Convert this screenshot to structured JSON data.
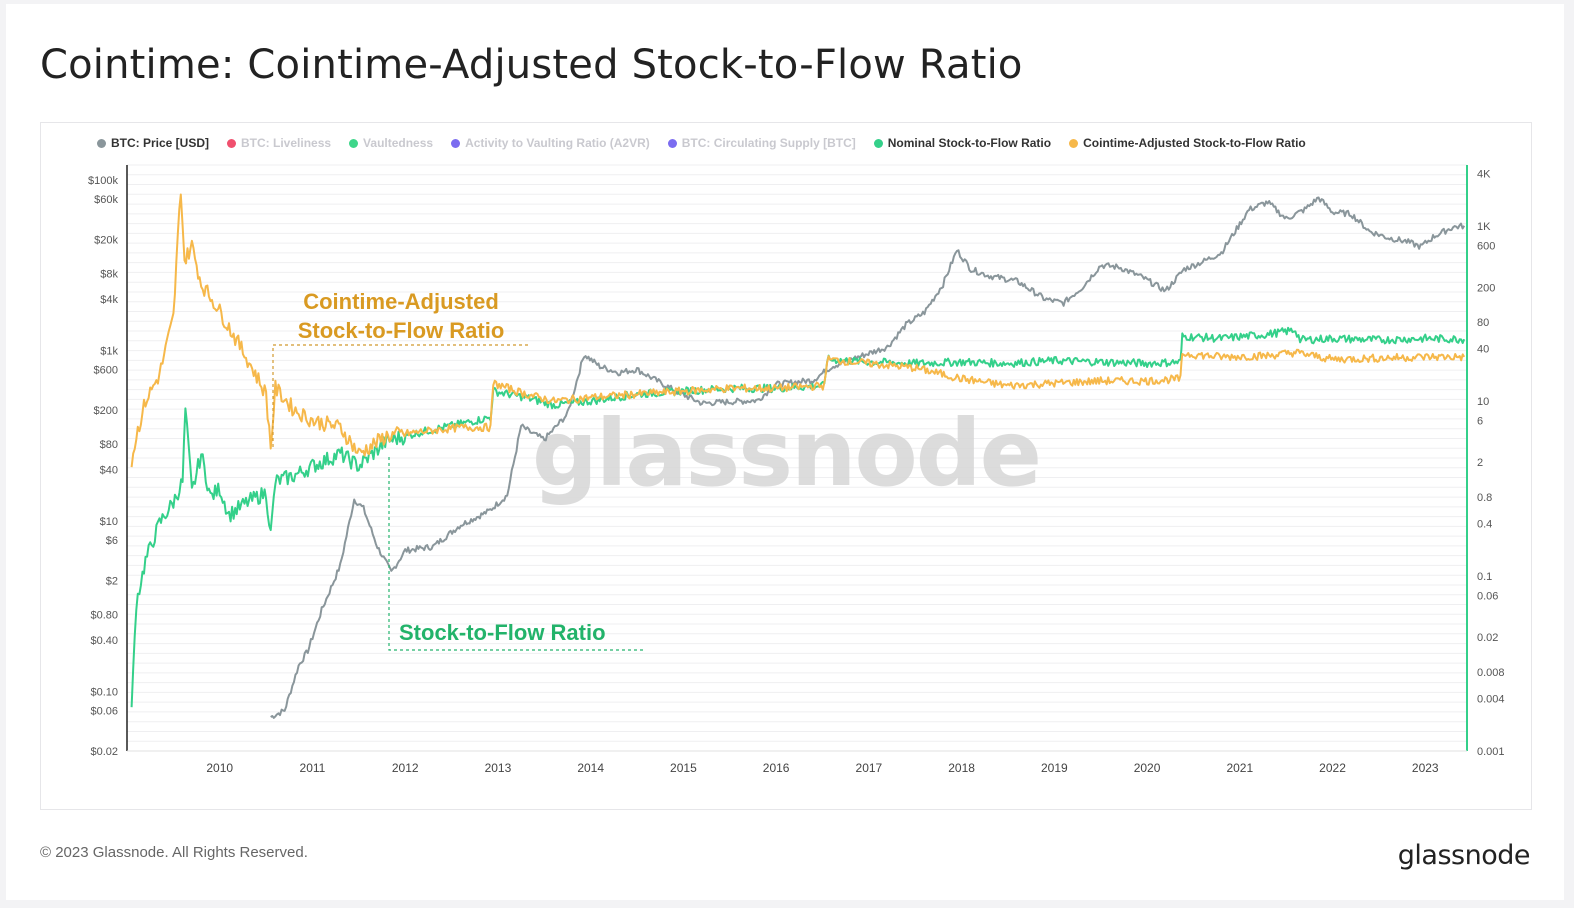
{
  "title": "Cointime: Cointime-Adjusted Stock-to-Flow Ratio",
  "legend": [
    {
      "label": "BTC: Price [USD]",
      "color": "#8a969b",
      "active": true
    },
    {
      "label": "BTC: Liveliness",
      "color": "#f0506e",
      "active": false
    },
    {
      "label": "Vaultedness",
      "color": "#3ed68a",
      "active": false
    },
    {
      "label": "Activity to Vaulting Ratio (A2VR)",
      "color": "#7b6cf0",
      "active": false
    },
    {
      "label": "BTC: Circulating Supply [BTC]",
      "color": "#7b6cf0",
      "active": false
    },
    {
      "label": "Nominal Stock-to-Flow Ratio",
      "color": "#34d08a",
      "active": true
    },
    {
      "label": "Cointime-Adjusted Stock-to-Flow Ratio",
      "color": "#f6b84a",
      "active": true
    }
  ],
  "annotations": {
    "cointime_label_line1": "Cointime-Adjusted",
    "cointime_label_line2": "Stock-to-Flow Ratio",
    "stf_label": "Stock-to-Flow Ratio"
  },
  "watermark": "glassnode",
  "footer": {
    "copyright": "© 2023 Glassnode. All Rights Reserved.",
    "brand": "glassnode"
  },
  "chart_data": {
    "type": "line",
    "x_axis": {
      "ticks": [
        "2010",
        "2011",
        "2012",
        "2013",
        "2014",
        "2015",
        "2016",
        "2017",
        "2018",
        "2019",
        "2020",
        "2021",
        "2022",
        "2023"
      ],
      "range": [
        2009.0,
        2023.45
      ]
    },
    "y_left": {
      "scale": "log",
      "range": [
        0.02,
        150000
      ],
      "tick_labels": [
        "$100k",
        "$60k",
        "$20k",
        "$8k",
        "$4k",
        "$1k",
        "$600",
        "$200",
        "$80",
        "$40",
        "$10",
        "$6",
        "$2",
        "$0.80",
        "$0.40",
        "$0.10",
        "$0.06",
        "$0.02"
      ],
      "tick_values": [
        100000,
        60000,
        20000,
        8000,
        4000,
        1000,
        600,
        200,
        80,
        40,
        10,
        6,
        2,
        0.8,
        0.4,
        0.1,
        0.06,
        0.02
      ]
    },
    "y_right": {
      "scale": "log",
      "range": [
        0.001,
        5000
      ],
      "tick_labels": [
        "4K",
        "1K",
        "600",
        "200",
        "80",
        "40",
        "10",
        "6",
        "2",
        "0.8",
        "0.4",
        "0.1",
        "0.06",
        "0.02",
        "0.008",
        "0.004",
        "0.001"
      ],
      "tick_values": [
        4000,
        1000,
        600,
        200,
        80,
        40,
        10,
        6,
        2,
        0.8,
        0.4,
        0.1,
        0.06,
        0.02,
        0.008,
        0.004,
        0.001
      ]
    },
    "grid": true,
    "legend_position": "top",
    "series": [
      {
        "name": "BTC: Price [USD]",
        "axis": "left",
        "color": "#8a969b",
        "points": [
          [
            2010.55,
            0.05
          ],
          [
            2010.7,
            0.06
          ],
          [
            2010.85,
            0.2
          ],
          [
            2010.95,
            0.3
          ],
          [
            2011.1,
            0.9
          ],
          [
            2011.3,
            3
          ],
          [
            2011.45,
            18
          ],
          [
            2011.55,
            14
          ],
          [
            2011.7,
            5
          ],
          [
            2011.85,
            2.5
          ],
          [
            2012.0,
            4.5
          ],
          [
            2012.3,
            5
          ],
          [
            2012.6,
            9
          ],
          [
            2012.9,
            13
          ],
          [
            2013.1,
            20
          ],
          [
            2013.25,
            130
          ],
          [
            2013.35,
            110
          ],
          [
            2013.5,
            90
          ],
          [
            2013.75,
            180
          ],
          [
            2013.93,
            900
          ],
          [
            2014.1,
            650
          ],
          [
            2014.3,
            550
          ],
          [
            2014.5,
            600
          ],
          [
            2014.7,
            450
          ],
          [
            2014.95,
            320
          ],
          [
            2015.2,
            240
          ],
          [
            2015.5,
            250
          ],
          [
            2015.8,
            260
          ],
          [
            2016.0,
            400
          ],
          [
            2016.4,
            450
          ],
          [
            2016.6,
            650
          ],
          [
            2016.9,
            850
          ],
          [
            2017.2,
            1100
          ],
          [
            2017.4,
            2000
          ],
          [
            2017.6,
            2800
          ],
          [
            2017.8,
            6000
          ],
          [
            2017.95,
            15000
          ],
          [
            2018.1,
            9000
          ],
          [
            2018.3,
            7500
          ],
          [
            2018.6,
            6500
          ],
          [
            2018.9,
            4000
          ],
          [
            2019.1,
            3600
          ],
          [
            2019.3,
            5500
          ],
          [
            2019.5,
            10000
          ],
          [
            2019.7,
            9500
          ],
          [
            2019.95,
            7200
          ],
          [
            2020.2,
            5000
          ],
          [
            2020.4,
            9000
          ],
          [
            2020.6,
            11000
          ],
          [
            2020.8,
            14000
          ],
          [
            2020.95,
            25000
          ],
          [
            2021.1,
            45000
          ],
          [
            2021.3,
            55000
          ],
          [
            2021.5,
            35000
          ],
          [
            2021.7,
            45000
          ],
          [
            2021.85,
            62000
          ],
          [
            2022.0,
            42000
          ],
          [
            2022.2,
            40000
          ],
          [
            2022.4,
            25000
          ],
          [
            2022.6,
            21000
          ],
          [
            2022.8,
            19000
          ],
          [
            2022.95,
            16500
          ],
          [
            2023.1,
            22000
          ],
          [
            2023.3,
            28000
          ],
          [
            2023.42,
            29000
          ]
        ]
      },
      {
        "name": "Nominal Stock-to-Flow Ratio",
        "axis": "right",
        "color": "#34d08a",
        "points": [
          [
            2009.05,
            0.003
          ],
          [
            2009.1,
            0.05
          ],
          [
            2009.2,
            0.15
          ],
          [
            2009.35,
            0.4
          ],
          [
            2009.5,
            0.7
          ],
          [
            2009.6,
            1.2
          ],
          [
            2009.63,
            8
          ],
          [
            2009.7,
            0.9
          ],
          [
            2009.8,
            2.5
          ],
          [
            2009.9,
            0.8
          ],
          [
            2010.0,
            1.0
          ],
          [
            2010.1,
            0.5
          ],
          [
            2010.3,
            0.7
          ],
          [
            2010.5,
            0.9
          ],
          [
            2010.55,
            0.3
          ],
          [
            2010.6,
            1.2
          ],
          [
            2010.8,
            1.4
          ],
          [
            2011.0,
            1.8
          ],
          [
            2011.3,
            2.5
          ],
          [
            2011.5,
            1.8
          ],
          [
            2011.8,
            3.5
          ],
          [
            2012.2,
            4.5
          ],
          [
            2012.6,
            5.5
          ],
          [
            2012.92,
            6.5
          ],
          [
            2012.95,
            13
          ],
          [
            2013.3,
            11
          ],
          [
            2013.6,
            9
          ],
          [
            2014.0,
            10
          ],
          [
            2014.5,
            12
          ],
          [
            2015.0,
            13
          ],
          [
            2015.5,
            14
          ],
          [
            2016.0,
            14
          ],
          [
            2016.52,
            15
          ],
          [
            2016.55,
            30
          ],
          [
            2017.0,
            28
          ],
          [
            2017.5,
            27
          ],
          [
            2018.0,
            28
          ],
          [
            2018.5,
            27
          ],
          [
            2019.0,
            29
          ],
          [
            2019.5,
            28
          ],
          [
            2020.0,
            27
          ],
          [
            2020.36,
            28
          ],
          [
            2020.38,
            55
          ],
          [
            2020.8,
            52
          ],
          [
            2021.3,
            58
          ],
          [
            2021.6,
            65
          ],
          [
            2021.65,
            50
          ],
          [
            2022.0,
            52
          ],
          [
            2022.5,
            50
          ],
          [
            2023.0,
            52
          ],
          [
            2023.42,
            51
          ]
        ]
      },
      {
        "name": "Cointime-Adjusted Stock-to-Flow Ratio",
        "axis": "right",
        "color": "#f6b84a",
        "points": [
          [
            2009.05,
            2
          ],
          [
            2009.1,
            4
          ],
          [
            2009.2,
            10
          ],
          [
            2009.35,
            20
          ],
          [
            2009.5,
            90
          ],
          [
            2009.58,
            2800
          ],
          [
            2009.62,
            400
          ],
          [
            2009.7,
            600
          ],
          [
            2009.8,
            220
          ],
          [
            2009.95,
            130
          ],
          [
            2010.1,
            70
          ],
          [
            2010.3,
            30
          ],
          [
            2010.5,
            12
          ],
          [
            2010.55,
            3
          ],
          [
            2010.6,
            14
          ],
          [
            2010.8,
            8
          ],
          [
            2011.0,
            6
          ],
          [
            2011.3,
            5
          ],
          [
            2011.5,
            2.5
          ],
          [
            2011.8,
            4
          ],
          [
            2012.2,
            4.5
          ],
          [
            2012.6,
            5
          ],
          [
            2012.92,
            5
          ],
          [
            2012.95,
            16
          ],
          [
            2013.3,
            12
          ],
          [
            2013.6,
            10
          ],
          [
            2014.0,
            11
          ],
          [
            2014.5,
            12
          ],
          [
            2015.0,
            13
          ],
          [
            2015.5,
            14
          ],
          [
            2016.0,
            14
          ],
          [
            2016.52,
            15
          ],
          [
            2016.55,
            30
          ],
          [
            2017.0,
            27
          ],
          [
            2017.5,
            24
          ],
          [
            2018.0,
            18
          ],
          [
            2018.5,
            15
          ],
          [
            2019.0,
            16
          ],
          [
            2019.5,
            17
          ],
          [
            2020.0,
            17
          ],
          [
            2020.36,
            18
          ],
          [
            2020.38,
            35
          ],
          [
            2020.8,
            32
          ],
          [
            2021.3,
            33
          ],
          [
            2021.6,
            36
          ],
          [
            2022.0,
            30
          ],
          [
            2022.5,
            31
          ],
          [
            2023.0,
            32
          ],
          [
            2023.42,
            32
          ]
        ]
      }
    ]
  }
}
